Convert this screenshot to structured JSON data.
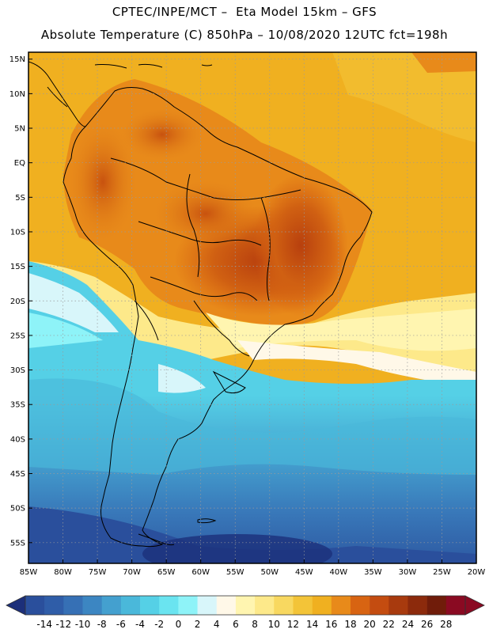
{
  "header": {
    "title_line1": "CPTEC/INPE/MCT –  Eta Model 15km – GFS",
    "title_line2": "Absolute Temperature (C) 850hPa – 10/08/2020 12UTC fct=198h"
  },
  "map": {
    "lat_labels": [
      "15N",
      "10N",
      "5N",
      "EQ",
      "5S",
      "10S",
      "15S",
      "20S",
      "25S",
      "30S",
      "35S",
      "40S",
      "45S",
      "50S",
      "55S"
    ],
    "lon_labels": [
      "85W",
      "80W",
      "75W",
      "70W",
      "65W",
      "60W",
      "55W",
      "50W",
      "45W",
      "40W",
      "35W",
      "30W",
      "25W",
      "20W"
    ],
    "lat_range": [
      -58,
      16
    ],
    "lon_range": [
      -85,
      -20
    ]
  },
  "colorbar": {
    "levels": [
      "-14",
      "-12",
      "-10",
      "-8",
      "-6",
      "-4",
      "-2",
      "0",
      "2",
      "4",
      "6",
      "8",
      "10",
      "12",
      "14",
      "16",
      "18",
      "20",
      "22",
      "24",
      "26",
      "28"
    ],
    "colors": [
      "#2a4f9c",
      "#2f5da8",
      "#3670b5",
      "#3c86c2",
      "#44a0cf",
      "#4ab8da",
      "#55d0e6",
      "#6ae4f0",
      "#8ef3f8",
      "#d8f6fa",
      "#fff8e8",
      "#fff5b0",
      "#fde98a",
      "#f8d860",
      "#f3c438",
      "#f0b020",
      "#e88a1a",
      "#d86412",
      "#c44c10",
      "#a83a0e",
      "#8c2a0c",
      "#701c0a",
      "#8a0a22"
    ],
    "under_color": "#1c2f7a",
    "over_color": "#8a0a22"
  }
}
